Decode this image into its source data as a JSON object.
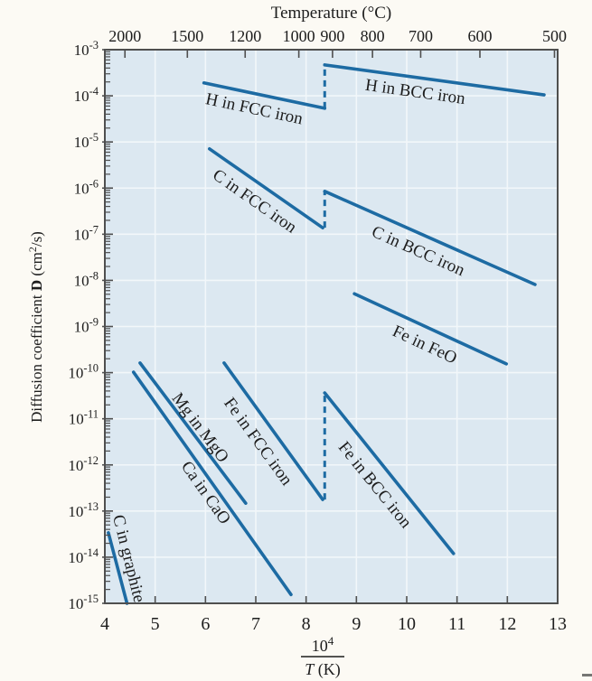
{
  "figure": {
    "description": "Arrhenius plot of diffusion coefficients for several diffusion couples versus reciprocal temperature"
  },
  "chart_data": {
    "type": "line",
    "grid": true,
    "plot_background": "#dce8f1",
    "x_top": {
      "label": "Temperature (°C)",
      "ticks": [
        2000,
        1500,
        1200,
        1000,
        900,
        800,
        700,
        600,
        500
      ]
    },
    "x_bottom": {
      "label_numerator_base": "10",
      "label_numerator_exp": "4",
      "label_denominator_var": "T",
      "label_denominator_rest": " (K)",
      "range": [
        4,
        13
      ],
      "ticks": [
        4,
        5,
        6,
        7,
        8,
        9,
        10,
        11,
        12,
        13
      ]
    },
    "y": {
      "label_prefix": "Diffusion coefficient ",
      "label_bold": "D",
      "label_unit_pre": " (cm",
      "label_unit_sup": "2",
      "label_unit_post": "/s)",
      "scale": "log",
      "exponent_range": [
        -3,
        -15
      ],
      "tick_exponents": [
        -3,
        -4,
        -5,
        -6,
        -7,
        -8,
        -9,
        -10,
        -11,
        -12,
        -13,
        -14,
        -15
      ]
    },
    "series": [
      {
        "name": "H in FCC iron",
        "points": [
          [
            5.97,
            -3.72
          ],
          [
            8.37,
            -4.27
          ]
        ],
        "label": {
          "text": "H in FCC iron",
          "v": 6.97,
          "logD": -4.28,
          "angle": 12
        }
      },
      {
        "name": "H in BCC iron",
        "points": [
          [
            8.37,
            -3.33
          ],
          [
            12.73,
            -3.98
          ]
        ],
        "label": {
          "text": "H in BCC iron",
          "v": 10.17,
          "logD": -3.91,
          "angle": 8
        }
      },
      {
        "name": "C in FCC iron",
        "points": [
          [
            6.08,
            -5.15
          ],
          [
            8.33,
            -6.86
          ]
        ],
        "label": {
          "text": "C in FCC iron",
          "v": 6.98,
          "logD": -6.28,
          "angle": 35
        }
      },
      {
        "name": "C in BCC iron",
        "points": [
          [
            8.37,
            -6.07
          ],
          [
            12.55,
            -8.09
          ]
        ],
        "label": {
          "text": "C in BCC iron",
          "v": 10.23,
          "logD": -7.36,
          "angle": 24
        }
      },
      {
        "name": "Fe in FeO",
        "points": [
          [
            8.96,
            -8.29
          ],
          [
            11.98,
            -9.81
          ]
        ],
        "label": {
          "text": "Fe in FeO",
          "v": 10.36,
          "logD": -9.39,
          "angle": 25
        }
      },
      {
        "name": "Fe in FCC iron",
        "points": [
          [
            6.37,
            -9.79
          ],
          [
            8.33,
            -12.75
          ]
        ],
        "label": {
          "text": "Fe in FCC iron",
          "v": 7.05,
          "logD": -11.49,
          "angle": 54
        }
      },
      {
        "name": "Fe in BCC iron",
        "points": [
          [
            8.37,
            -10.44
          ],
          [
            10.93,
            -13.92
          ]
        ],
        "label": {
          "text": "Fe in BCC iron",
          "v": 9.37,
          "logD": -12.43,
          "angle": 51
        }
      },
      {
        "name": "Mg in MgO",
        "points": [
          [
            4.7,
            -9.79
          ],
          [
            6.8,
            -12.83
          ]
        ],
        "label": {
          "text": "Mg in MgO",
          "v": 5.9,
          "logD": -11.19,
          "angle": 53
        }
      },
      {
        "name": "Ca in CaO",
        "points": [
          [
            4.57,
            -9.99
          ],
          [
            7.7,
            -14.81
          ]
        ],
        "label": {
          "text": "Ca in CaO",
          "v": 6.01,
          "logD": -12.6,
          "angle": 55
        }
      },
      {
        "name": "C in graphite",
        "points": [
          [
            4.07,
            -13.47
          ],
          [
            4.44,
            -15.0
          ]
        ],
        "label": {
          "text": "C in graphite",
          "v": 4.48,
          "logD": -14.03,
          "angle": 76
        }
      }
    ],
    "phase_transition_connectors": [
      {
        "v": 8.37,
        "from": -4.27,
        "to": -3.33
      },
      {
        "v": 8.37,
        "from": -6.86,
        "to": -6.07
      },
      {
        "v": 8.37,
        "from": -12.75,
        "to": -10.44
      }
    ],
    "style": {
      "line_color": "#1d6ba3",
      "plot_bg": "#dce8f1",
      "grid_color": "#f2f7fa",
      "spine_color": "#4f4f4f",
      "text_color": "#1d1d1d",
      "page_bg": "#fcfaf4"
    }
  }
}
